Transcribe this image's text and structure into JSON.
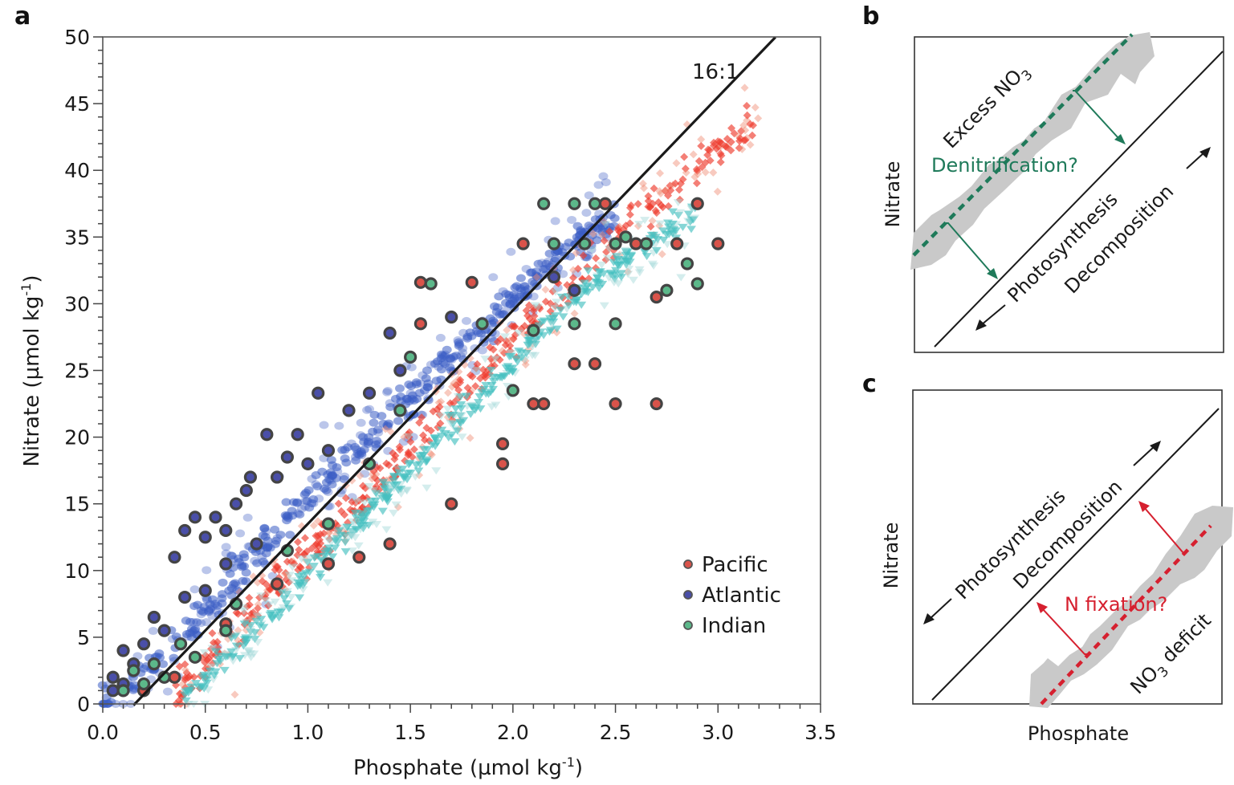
{
  "chart_data": [
    {
      "panel": "a",
      "type": "scatter",
      "xlabel": "Phosphate (µmol kg",
      "xlabel_sup": "-1",
      "xlabel_end": ")",
      "ylabel": "Nitrate (µmol kg",
      "ylabel_sup": "-1",
      "ylabel_end": ")",
      "xlim": [
        0,
        3.5
      ],
      "ylim": [
        0,
        50
      ],
      "xticks": [
        "0.0",
        "0.5",
        "1.0",
        "1.5",
        "2.0",
        "2.5",
        "3.0",
        "3.5"
      ],
      "xtick_values": [
        0,
        0.5,
        1.0,
        1.5,
        2.0,
        2.5,
        3.0,
        3.5
      ],
      "yticks": [
        "0",
        "5",
        "10",
        "15",
        "20",
        "25",
        "30",
        "35",
        "40",
        "45",
        "50"
      ],
      "ytick_values": [
        0,
        5,
        10,
        15,
        20,
        25,
        30,
        35,
        40,
        45,
        50
      ],
      "x_minor_step": 0.1,
      "y_minor_step": 1,
      "grid": false,
      "legend_position": "bottom-right",
      "legend": [
        {
          "name": "Pacific",
          "color": "#d9534a"
        },
        {
          "name": "Atlantic",
          "color": "#4a4fa8"
        },
        {
          "name": "Indian",
          "color": "#5cb88a"
        }
      ],
      "reference_line": {
        "label": "16:1",
        "slope": 16,
        "intercept": -2.5,
        "x_range": [
          0.15,
          3.28
        ]
      },
      "clouds": [
        {
          "name": "Atlantic cloud",
          "color": "#3b5cc4",
          "marker": "circle",
          "trend": [
            [
              0.0,
              0.5
            ],
            [
              0.3,
              3.5
            ],
            [
              0.6,
              8.5
            ],
            [
              1.0,
              15.5
            ],
            [
              1.4,
              21.5
            ],
            [
              1.8,
              27.5
            ],
            [
              2.2,
              33.5
            ],
            [
              2.5,
              36.5
            ]
          ],
          "spread": 1.6
        },
        {
          "name": "Pacific cloud",
          "color": "#ee3b2c",
          "marker": "diamond",
          "trend": [
            [
              0.35,
              0.5
            ],
            [
              0.7,
              6.5
            ],
            [
              1.2,
              14.5
            ],
            [
              1.7,
              22.5
            ],
            [
              2.2,
              30.5
            ],
            [
              2.6,
              36.5
            ],
            [
              2.9,
              40.5
            ],
            [
              3.2,
              43.5
            ]
          ],
          "spread": 1.7
        },
        {
          "name": "Indian cloud",
          "color": "#45c0c0",
          "marker": "triangle",
          "trend": [
            [
              0.4,
              0.5
            ],
            [
              0.9,
              8.0
            ],
            [
              1.4,
              16.0
            ],
            [
              1.9,
              24.0
            ],
            [
              2.3,
              30.5
            ],
            [
              2.7,
              35.0
            ],
            [
              2.9,
              37.0
            ]
          ],
          "spread": 1.2
        }
      ],
      "station_points": {
        "Atlantic": [
          [
            0.05,
            1.0
          ],
          [
            0.05,
            2.0
          ],
          [
            0.1,
            4.0
          ],
          [
            0.1,
            1.5
          ],
          [
            0.15,
            3.0
          ],
          [
            0.2,
            4.5
          ],
          [
            0.25,
            6.5
          ],
          [
            0.3,
            5.5
          ],
          [
            0.35,
            11.0
          ],
          [
            0.4,
            13.0
          ],
          [
            0.4,
            8.0
          ],
          [
            0.45,
            14.0
          ],
          [
            0.5,
            12.5
          ],
          [
            0.5,
            8.5
          ],
          [
            0.55,
            14.0
          ],
          [
            0.6,
            13.0
          ],
          [
            0.6,
            10.5
          ],
          [
            0.65,
            15.0
          ],
          [
            0.7,
            16.0
          ],
          [
            0.72,
            17.0
          ],
          [
            0.75,
            12.0
          ],
          [
            0.8,
            20.2
          ],
          [
            0.85,
            17.0
          ],
          [
            0.9,
            18.5
          ],
          [
            0.95,
            20.2
          ],
          [
            1.0,
            18.0
          ],
          [
            1.05,
            23.3
          ],
          [
            1.1,
            19.0
          ],
          [
            1.2,
            22.0
          ],
          [
            1.3,
            23.3
          ],
          [
            1.4,
            27.8
          ],
          [
            1.45,
            25.0
          ],
          [
            1.7,
            29.0
          ],
          [
            2.2,
            32.0
          ],
          [
            2.3,
            31.0
          ]
        ],
        "Pacific": [
          [
            0.2,
            1.0
          ],
          [
            0.35,
            2.0
          ],
          [
            0.6,
            6.0
          ],
          [
            0.85,
            9.0
          ],
          [
            1.1,
            10.5
          ],
          [
            1.25,
            11.0
          ],
          [
            1.4,
            12.0
          ],
          [
            1.55,
            31.6
          ],
          [
            1.55,
            28.5
          ],
          [
            1.7,
            15.0
          ],
          [
            1.8,
            31.6
          ],
          [
            1.95,
            19.5
          ],
          [
            1.95,
            18.0
          ],
          [
            2.05,
            34.5
          ],
          [
            2.1,
            22.5
          ],
          [
            2.15,
            22.5
          ],
          [
            2.3,
            25.5
          ],
          [
            2.4,
            25.5
          ],
          [
            2.45,
            37.5
          ],
          [
            2.5,
            22.5
          ],
          [
            2.6,
            34.5
          ],
          [
            2.7,
            22.5
          ],
          [
            2.8,
            34.5
          ],
          [
            2.9,
            37.5
          ],
          [
            3.0,
            34.5
          ],
          [
            2.7,
            30.5
          ]
        ],
        "Indian": [
          [
            0.1,
            1.0
          ],
          [
            0.15,
            2.5
          ],
          [
            0.2,
            1.5
          ],
          [
            0.25,
            3.0
          ],
          [
            0.3,
            2.0
          ],
          [
            0.38,
            4.5
          ],
          [
            0.45,
            3.5
          ],
          [
            0.6,
            5.5
          ],
          [
            0.65,
            7.5
          ],
          [
            0.9,
            11.5
          ],
          [
            1.1,
            13.5
          ],
          [
            1.3,
            18.0
          ],
          [
            1.45,
            22.0
          ],
          [
            1.5,
            26.0
          ],
          [
            1.6,
            31.5
          ],
          [
            1.85,
            28.5
          ],
          [
            2.0,
            23.5
          ],
          [
            2.1,
            28.0
          ],
          [
            2.15,
            37.5
          ],
          [
            2.2,
            34.5
          ],
          [
            2.3,
            37.5
          ],
          [
            2.35,
            34.5
          ],
          [
            2.4,
            37.5
          ],
          [
            2.5,
            34.5
          ],
          [
            2.55,
            35.0
          ],
          [
            2.65,
            34.5
          ],
          [
            2.75,
            31.0
          ],
          [
            2.85,
            33.0
          ],
          [
            2.9,
            31.5
          ],
          [
            2.3,
            28.5
          ],
          [
            2.5,
            28.5
          ]
        ]
      }
    },
    {
      "panel": "b",
      "type": "diagram",
      "xlabel": "",
      "ylabel": "Nitrate",
      "excess_label": "Excess NO",
      "excess_sub": "3",
      "process_label": "Denitrification?",
      "line_label_left": "Photosynthesis",
      "line_label_right": "Decomposition",
      "accent": "#1f7a5a"
    },
    {
      "panel": "c",
      "type": "diagram",
      "xlabel": "Phosphate",
      "ylabel": "Nitrate",
      "deficit_label_pre": "NO",
      "deficit_sub": "3",
      "deficit_label": " deficit",
      "process_label": "N fixation?",
      "line_label_left": "Photosynthesis",
      "line_label_right": "Decomposition",
      "accent": "#d6202f"
    }
  ],
  "panel_labels": {
    "a": "a",
    "b": "b",
    "c": "c"
  }
}
